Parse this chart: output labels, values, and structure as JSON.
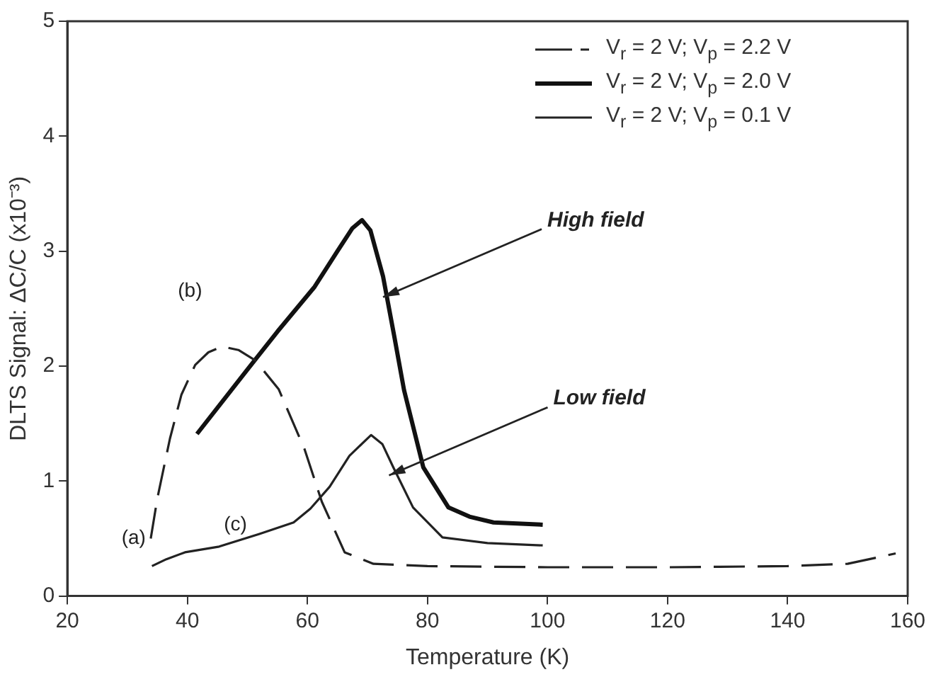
{
  "chart_data": {
    "type": "line",
    "xlabel": "Temperature (K)",
    "ylabel": "DLTS Signal: ΔC/C (x10⁻³)",
    "xlim": [
      20,
      160
    ],
    "xticks": [
      20,
      40,
      60,
      80,
      100,
      120,
      140,
      160
    ],
    "ylim": [
      0,
      5
    ],
    "yticks": [
      0,
      1,
      2,
      3,
      4,
      5
    ],
    "grid": false,
    "legend": "top right",
    "marker": "none",
    "series": [
      {
        "name": "V$_{r}$ = 2 V; V$_{p}$ = 2.2 V",
        "color": "#222222",
        "line_style": "dashed",
        "x": [
          33.9,
          35,
          37.1,
          39,
          41.3,
          43.5,
          45.8,
          48.5,
          51.3,
          55.2,
          59.5,
          62.4,
          66.2,
          71,
          80,
          100,
          120,
          140,
          150,
          158
        ],
        "values": [
          0.5,
          0.85,
          1.37,
          1.75,
          2.01,
          2.12,
          2.17,
          2.14,
          2.05,
          1.8,
          1.28,
          0.82,
          0.38,
          0.28,
          0.26,
          0.25,
          0.25,
          0.26,
          0.28,
          0.37
        ]
      },
      {
        "name": "V$_{r}$ = 2 V; V$_{p}$ = 2.0 V",
        "color": "#111111",
        "x": [
          41.6,
          50,
          55,
          61.2,
          65,
          67.5,
          69.1,
          70.5,
          72.6,
          74.5,
          76.1,
          79.3,
          83.5,
          87,
          91,
          99.2
        ],
        "values": [
          1.41,
          1.97,
          2.3,
          2.69,
          3.0,
          3.2,
          3.27,
          3.18,
          2.78,
          2.25,
          1.79,
          1.12,
          0.77,
          0.69,
          0.64,
          0.62
        ]
      },
      {
        "name": "V$_{r}$ = 2 V; V$_{p}$ = 0.1 V",
        "color": "#222222",
        "x": [
          34.1,
          36.5,
          39.6,
          45.3,
          52,
          57.7,
          60.5,
          63.7,
          67,
          70.6,
          72.5,
          74.3,
          77.6,
          82.5,
          90,
          99.2
        ],
        "values": [
          0.26,
          0.32,
          0.38,
          0.43,
          0.54,
          0.64,
          0.76,
          0.95,
          1.22,
          1.4,
          1.32,
          1.12,
          0.77,
          0.51,
          0.46,
          0.44
        ]
      }
    ],
    "annotations": [
      "(a)",
      "(b)",
      "(c)",
      {
        "text": "High field",
        "x": 72.6,
        "y": 2.6
      },
      {
        "text": "Low field",
        "x": 73.6,
        "y": 1.05
      }
    ]
  }
}
